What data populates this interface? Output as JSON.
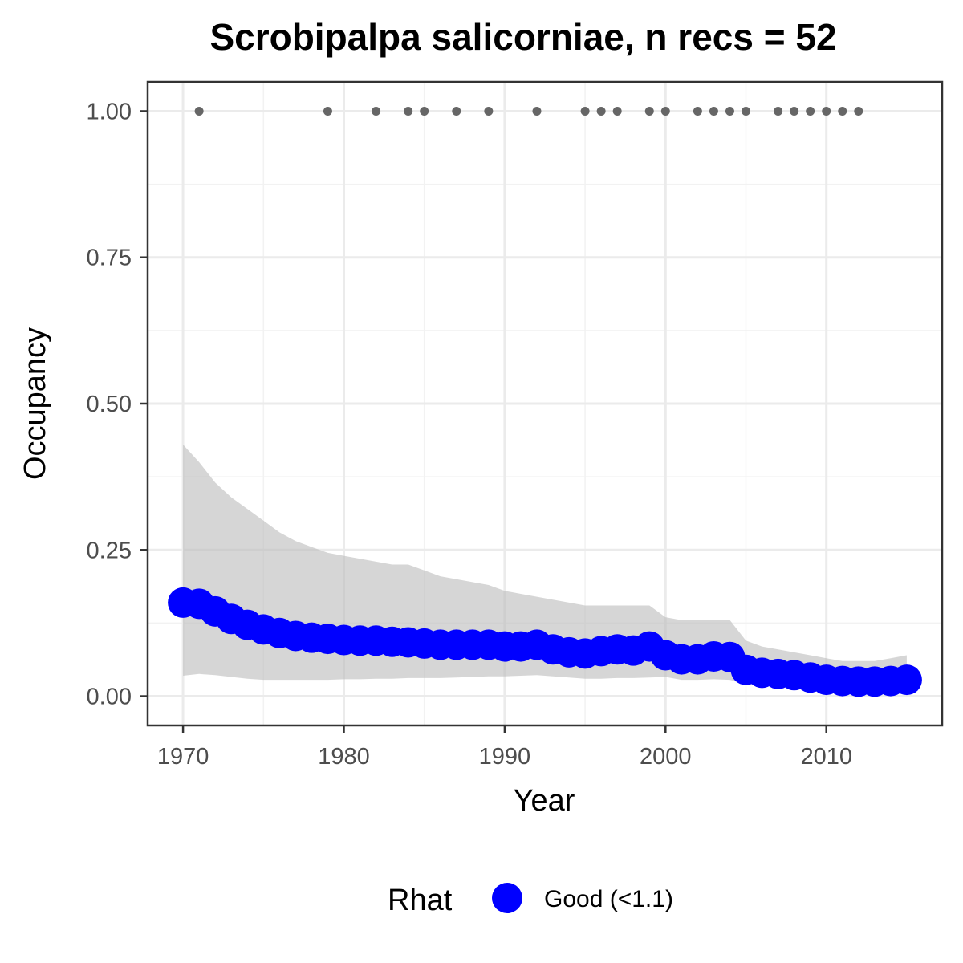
{
  "chart_data": {
    "type": "line",
    "title": "Scrobipalpa salicorniae, n recs = 52",
    "xlabel": "Year",
    "ylabel": "Occupancy",
    "xlim": [
      1967.8,
      2017.2
    ],
    "ylim": [
      -0.05,
      1.05
    ],
    "x_ticks": [
      1970,
      1980,
      1990,
      2000,
      2010
    ],
    "x_tick_labels": [
      "1970",
      "1980",
      "1990",
      "2000",
      "2010"
    ],
    "y_ticks": [
      0,
      0.25,
      0.5,
      0.75,
      1
    ],
    "y_tick_labels": [
      "0.00",
      "0.25",
      "0.50",
      "0.75",
      "1.00"
    ],
    "grid": true,
    "series": [
      {
        "type": "ribbon",
        "color": "#bbbbbb",
        "x": [
          1970,
          1971,
          1972,
          1973,
          1974,
          1975,
          1976,
          1977,
          1978,
          1979,
          1980,
          1981,
          1982,
          1983,
          1984,
          1985,
          1986,
          1987,
          1988,
          1989,
          1990,
          1991,
          1992,
          1993,
          1994,
          1995,
          1996,
          1997,
          1998,
          1999,
          2000,
          2001,
          2002,
          2003,
          2004,
          2005,
          2006,
          2007,
          2008,
          2009,
          2010,
          2011,
          2012,
          2013,
          2014,
          2015
        ],
        "lower": [
          0.035,
          0.038,
          0.036,
          0.033,
          0.03,
          0.028,
          0.028,
          0.028,
          0.028,
          0.028,
          0.029,
          0.029,
          0.03,
          0.03,
          0.031,
          0.031,
          0.031,
          0.032,
          0.033,
          0.034,
          0.034,
          0.035,
          0.036,
          0.034,
          0.032,
          0.03,
          0.03,
          0.031,
          0.031,
          0.032,
          0.033,
          0.028,
          0.028,
          0.029,
          0.028,
          0.02,
          0.018,
          0.018,
          0.017,
          0.016,
          0.013,
          0.012,
          0.012,
          0.012,
          0.012,
          0.012
        ],
        "upper": [
          0.43,
          0.4,
          0.365,
          0.34,
          0.32,
          0.3,
          0.28,
          0.265,
          0.255,
          0.245,
          0.24,
          0.235,
          0.23,
          0.225,
          0.225,
          0.215,
          0.205,
          0.2,
          0.195,
          0.19,
          0.18,
          0.175,
          0.17,
          0.165,
          0.16,
          0.155,
          0.155,
          0.155,
          0.155,
          0.155,
          0.135,
          0.13,
          0.13,
          0.13,
          0.13,
          0.095,
          0.085,
          0.08,
          0.075,
          0.07,
          0.065,
          0.06,
          0.06,
          0.06,
          0.065,
          0.07
        ]
      },
      {
        "type": "points",
        "color": "#0000ff",
        "x": [
          1970,
          1971,
          1972,
          1973,
          1974,
          1975,
          1976,
          1977,
          1978,
          1979,
          1980,
          1981,
          1982,
          1983,
          1984,
          1985,
          1986,
          1987,
          1988,
          1989,
          1990,
          1991,
          1992,
          1993,
          1994,
          1995,
          1996,
          1997,
          1998,
          1999,
          2000,
          2001,
          2002,
          2003,
          2004,
          2005,
          2006,
          2007,
          2008,
          2009,
          2010,
          2011,
          2012,
          2013,
          2014,
          2015
        ],
        "values": [
          0.16,
          0.158,
          0.145,
          0.132,
          0.122,
          0.114,
          0.108,
          0.103,
          0.1,
          0.098,
          0.096,
          0.095,
          0.095,
          0.093,
          0.092,
          0.09,
          0.088,
          0.088,
          0.088,
          0.088,
          0.085,
          0.085,
          0.088,
          0.08,
          0.075,
          0.073,
          0.077,
          0.08,
          0.078,
          0.085,
          0.07,
          0.063,
          0.063,
          0.068,
          0.067,
          0.045,
          0.04,
          0.038,
          0.036,
          0.032,
          0.028,
          0.026,
          0.025,
          0.025,
          0.026,
          0.028
        ]
      },
      {
        "type": "points",
        "color": "#666666",
        "x": [
          1971,
          1979,
          1982,
          1984,
          1985,
          1987,
          1989,
          1992,
          1995,
          1996,
          1997,
          1999,
          2000,
          2002,
          2003,
          2004,
          2005,
          2007,
          2008,
          2009,
          2010,
          2011,
          2012
        ],
        "values": [
          1,
          1,
          1,
          1,
          1,
          1,
          1,
          1,
          1,
          1,
          1,
          1,
          1,
          1,
          1,
          1,
          1,
          1,
          1,
          1,
          1,
          1,
          1
        ]
      }
    ],
    "legend": {
      "position": "bottom",
      "title": "Rhat",
      "items": [
        {
          "label": "Good (<1.1)",
          "color": "#0000ff"
        }
      ]
    }
  }
}
